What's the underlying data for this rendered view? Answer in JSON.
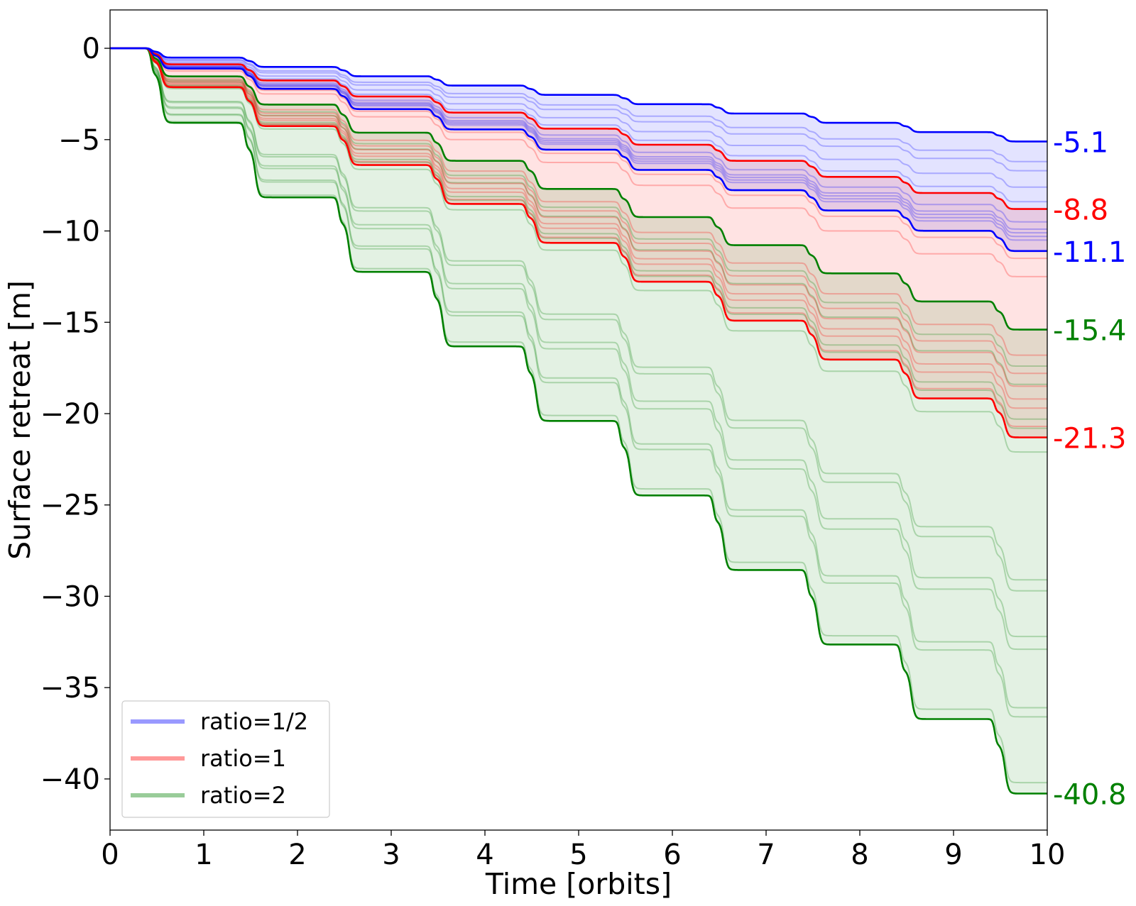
{
  "chart_data": {
    "type": "line",
    "xlabel": "Time [orbits]",
    "ylabel": "Surface retreat [m]",
    "xlim": [
      0,
      10
    ],
    "ylim": [
      -42.8,
      2.1
    ],
    "xticks": [
      0,
      1,
      2,
      3,
      4,
      5,
      6,
      7,
      8,
      9,
      10
    ],
    "xtick_labels": [
      "0",
      "1",
      "2",
      "3",
      "4",
      "5",
      "6",
      "7",
      "8",
      "9",
      "10"
    ],
    "yticks": [
      0,
      -5,
      -10,
      -15,
      -20,
      -25,
      -30,
      -35,
      -40
    ],
    "ytick_labels": [
      "0",
      "−5",
      "−10",
      "−15",
      "−20",
      "−25",
      "−30",
      "−35",
      "−40"
    ],
    "grid": false,
    "legend_position": "lower-left",
    "legend": [
      {
        "label": "ratio=1/2",
        "color": "#9999ff"
      },
      {
        "label": "ratio=1",
        "color": "#ff9999"
      },
      {
        "label": "ratio=2",
        "color": "#99cc99"
      }
    ],
    "series": [
      {
        "name": "ratio=1/2",
        "color": "#0000ff",
        "fill": "#e3e3ff",
        "envelope_final": [
          -5.1,
          -11.1
        ],
        "member_finals": [
          -5.1,
          -6.2,
          -6.7,
          -7.6,
          -8.4,
          -9.5,
          -9.9,
          -10.1,
          -10.3,
          -10.5,
          -11.1
        ]
      },
      {
        "name": "ratio=1",
        "color": "#ff0000",
        "fill": "#ffe0e0",
        "envelope_final": [
          -8.8,
          -21.3
        ],
        "member_finals": [
          -8.8,
          -11.5,
          -12.5,
          -16.8,
          -17.8,
          -18.5,
          -19.2,
          -19.7,
          -20.7,
          -21.3
        ]
      },
      {
        "name": "ratio=2",
        "color": "#008000",
        "fill": "#e3f0e3",
        "envelope_final": [
          -15.4,
          -40.8
        ],
        "member_finals": [
          -15.4,
          -17.4,
          -18.4,
          -20.3,
          -20.8,
          -22.1,
          -29.1,
          -29.7,
          -32.2,
          -32.9,
          -36.1,
          -36.6,
          -40.2,
          -40.8
        ]
      }
    ],
    "annotations": [
      {
        "text": "-5.1",
        "y": -5.1,
        "color": "#0000ff"
      },
      {
        "text": "-8.8",
        "y": -8.8,
        "color": "#ff0000"
      },
      {
        "text": "-11.1",
        "y": -11.1,
        "color": "#0000ff"
      },
      {
        "text": "-15.4",
        "y": -15.4,
        "color": "#008000"
      },
      {
        "text": "-21.3",
        "y": -21.3,
        "color": "#ff0000"
      },
      {
        "text": "-40.8",
        "y": -40.8,
        "color": "#008000"
      }
    ]
  }
}
